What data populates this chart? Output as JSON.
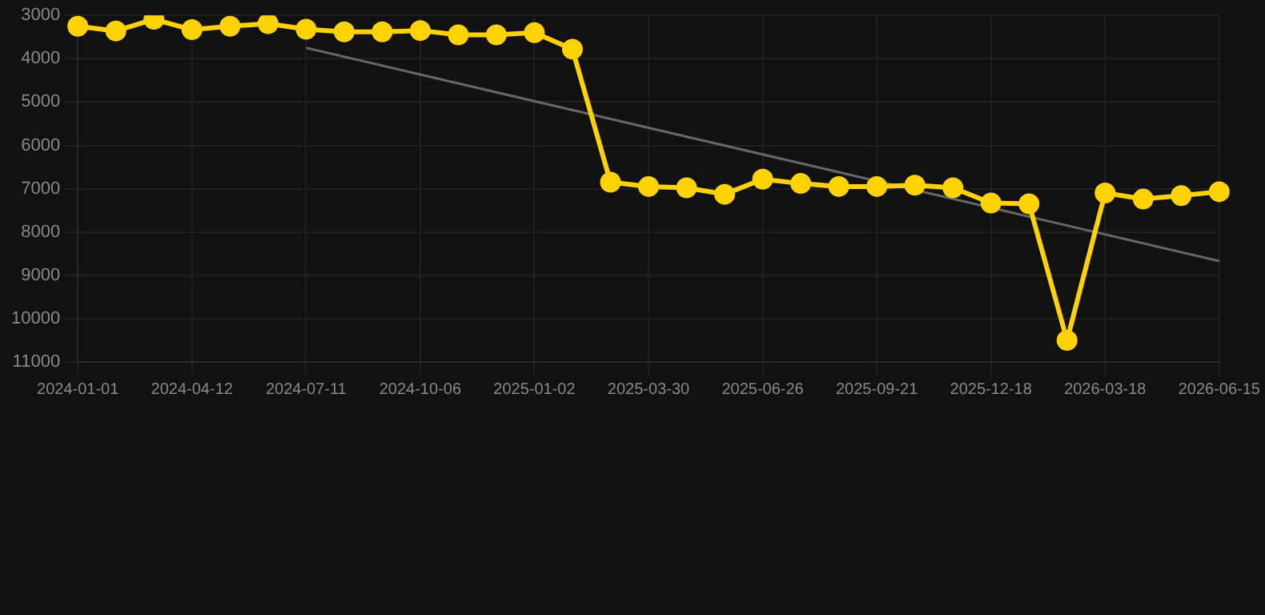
{
  "chart_data": {
    "type": "line",
    "categories": [
      "2024-01-01",
      null,
      null,
      "2024-04-12",
      null,
      null,
      "2024-07-11",
      null,
      null,
      "2024-10-06",
      null,
      null,
      "2025-01-02",
      null,
      null,
      "2025-03-30",
      null,
      null,
      "2025-06-26",
      null,
      null,
      "2025-09-21",
      null,
      null,
      "2025-12-18",
      null,
      null,
      "2026-03-18",
      null,
      null,
      "2026-06-15"
    ],
    "series": [
      {
        "color": "#ffd200",
        "marker": "circle",
        "values": [
          3250,
          3360,
          3090,
          3330,
          3250,
          3190,
          3320,
          3380,
          3380,
          3350,
          3450,
          3450,
          3400,
          3780,
          6850,
          6950,
          6980,
          7130,
          6780,
          6880,
          6950,
          6950,
          6920,
          6980,
          7330,
          7350,
          10500,
          7100,
          7240,
          7160,
          7070
        ]
      },
      {
        "color": "#666666",
        "marker": "none",
        "values": [
          null,
          null,
          null,
          null,
          null,
          null,
          3750,
          null,
          null,
          null,
          null,
          null,
          null,
          null,
          null,
          null,
          null,
          null,
          null,
          null,
          null,
          null,
          null,
          null,
          null,
          null,
          null,
          null,
          null,
          null,
          8670
        ]
      }
    ],
    "ylim": [
      11000,
      3000
    ],
    "yticks": [
      3000,
      4000,
      5000,
      6000,
      7000,
      8000,
      9000,
      10000,
      11000
    ],
    "grid": true,
    "legend": false
  }
}
